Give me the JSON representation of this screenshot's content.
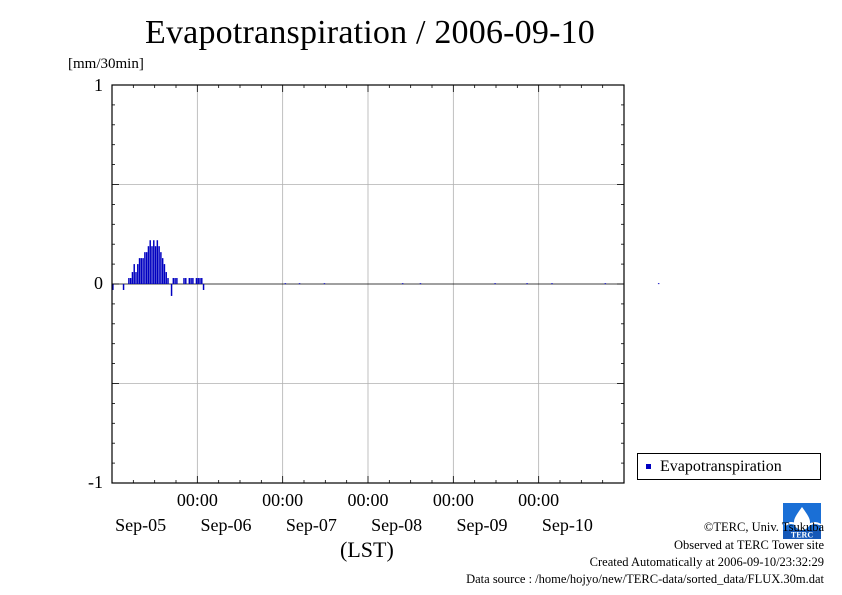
{
  "title": "Evapotranspiration / 2006-09-10",
  "y_unit": "[mm/30min]",
  "x_axis_label": "(LST)",
  "legend": {
    "label": "Evapotranspiration",
    "color": "#0000c0"
  },
  "credits": {
    "copyright": "©TERC, Univ. Tsukuba",
    "observed": "Observed at TERC Tower site",
    "created": "Created Automatically at 2006-09-10/23:32:29",
    "source": "Data source : /home/hojyo/new/TERC-data/sorted_data/FLUX.30m.dat"
  },
  "logo": {
    "text": "TERC",
    "color": "#1a6fd6"
  },
  "chart_data": {
    "type": "bar",
    "title": "Evapotranspiration / 2006-09-10",
    "ylabel": "[mm/30min]",
    "xlabel": "(LST)",
    "ylim": [
      -1,
      1
    ],
    "xlim_hours": [
      -96,
      48
    ],
    "y_ticks": [
      "1",
      "0",
      "-1"
    ],
    "x_time_ticks": [
      "00:00",
      "00:00",
      "00:00",
      "00:00",
      "00:00"
    ],
    "x_date_ticks": [
      "Sep-05",
      "Sep-06",
      "Sep-07",
      "Sep-08",
      "Sep-09",
      "Sep-10"
    ],
    "grid": true,
    "legend_position": "right",
    "series": [
      {
        "name": "Evapotranspiration",
        "color": "#0000c0",
        "values": [
          [
            0.5,
            -0.03
          ],
          [
            1.0,
            0
          ],
          [
            1.5,
            0
          ],
          [
            2.0,
            0
          ],
          [
            2.5,
            0
          ],
          [
            3.0,
            0
          ],
          [
            3.5,
            -0.03
          ],
          [
            4.0,
            0
          ],
          [
            4.5,
            0
          ],
          [
            5.0,
            0.03
          ],
          [
            5.5,
            0.03
          ],
          [
            6.0,
            0.06
          ],
          [
            6.5,
            0.1
          ],
          [
            7.0,
            0.06
          ],
          [
            7.5,
            0.1
          ],
          [
            8.0,
            0.13
          ],
          [
            8.5,
            0.13
          ],
          [
            9.0,
            0.13
          ],
          [
            9.5,
            0.16
          ],
          [
            10.0,
            0.16
          ],
          [
            10.5,
            0.19
          ],
          [
            11.0,
            0.22
          ],
          [
            11.5,
            0.19
          ],
          [
            12.0,
            0.22
          ],
          [
            12.5,
            0.19
          ],
          [
            13.0,
            0.22
          ],
          [
            13.5,
            0.19
          ],
          [
            14.0,
            0.16
          ],
          [
            14.5,
            0.13
          ],
          [
            15.0,
            0.1
          ],
          [
            15.5,
            0.06
          ],
          [
            16.0,
            0.03
          ],
          [
            16.5,
            0
          ],
          [
            17.0,
            -0.06
          ],
          [
            17.5,
            0.03
          ],
          [
            18.0,
            0.03
          ],
          [
            18.5,
            0.03
          ],
          [
            19.0,
            0
          ],
          [
            19.5,
            0
          ],
          [
            20.0,
            0
          ],
          [
            20.5,
            0.03
          ],
          [
            21.0,
            0.03
          ],
          [
            21.5,
            0
          ],
          [
            22.0,
            0.03
          ],
          [
            22.5,
            0.03
          ],
          [
            23.0,
            0.03
          ],
          [
            23.5,
            0
          ],
          [
            24.0,
            0.03
          ],
          [
            24.5,
            0.03
          ],
          [
            25.0,
            0.03
          ],
          [
            25.5,
            0.03
          ],
          [
            26.0,
            -0.03
          ],
          [
            49,
            0.004
          ],
          [
            53,
            0.004
          ],
          [
            60,
            0.004
          ],
          [
            82,
            0.004
          ],
          [
            87,
            0.004
          ],
          [
            108,
            0.004
          ],
          [
            117,
            0.004
          ],
          [
            124,
            0.004
          ],
          [
            139,
            0.004
          ],
          [
            154,
            0.004
          ]
        ]
      }
    ]
  }
}
